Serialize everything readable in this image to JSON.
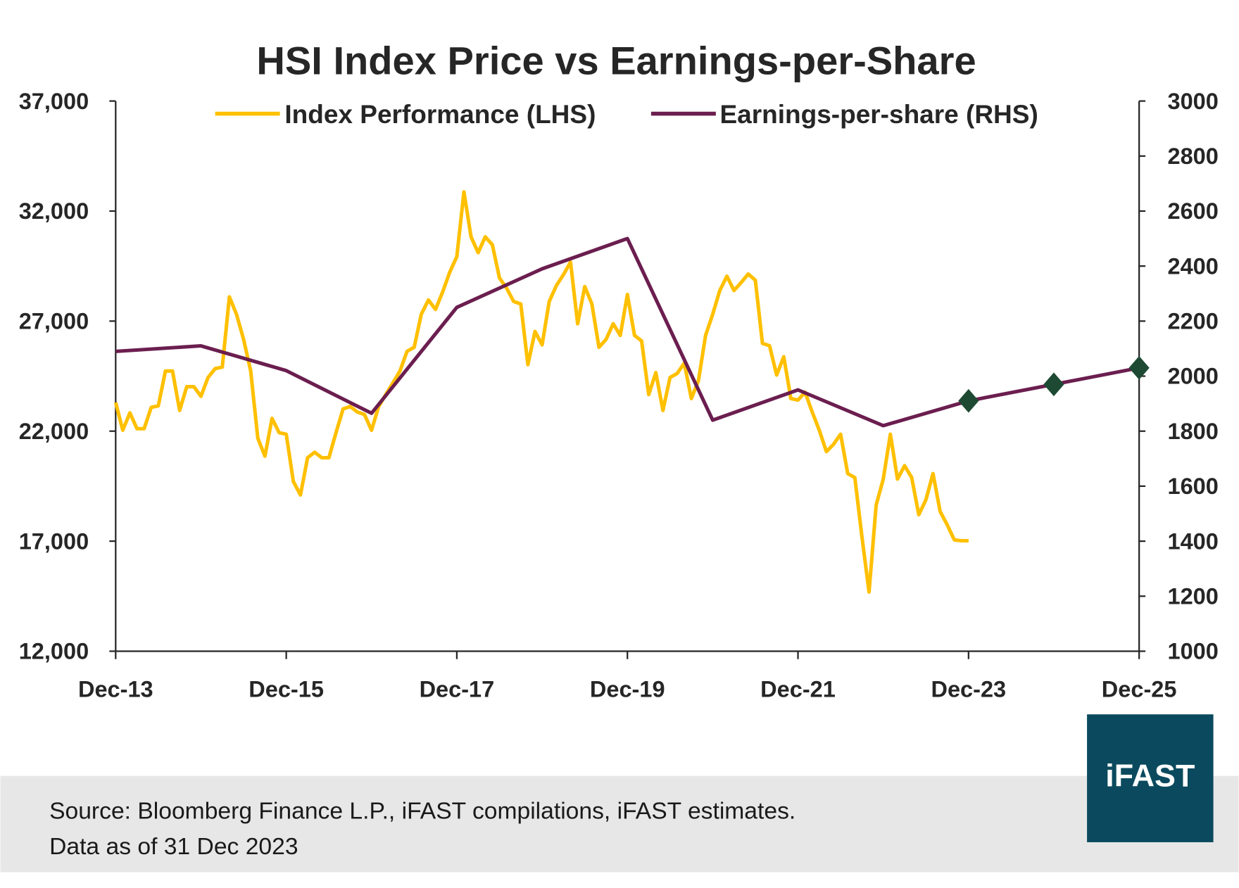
{
  "chart_data": {
    "type": "line",
    "title": "HSI Index Price vs Earnings-per-Share",
    "legend_position": "top",
    "grid": false,
    "x_tick_labels": [
      "Dec-13",
      "Dec-15",
      "Dec-17",
      "Dec-19",
      "Dec-21",
      "Dec-23",
      "Dec-25"
    ],
    "x_range": [
      "2013-12",
      "2025-12"
    ],
    "y_left": {
      "ticks": [
        "12,000",
        "17,000",
        "22,000",
        "27,000",
        "32,000",
        "37,000"
      ],
      "range": [
        12000,
        37000
      ]
    },
    "y_right": {
      "ticks": [
        "1000",
        "1200",
        "1400",
        "1600",
        "1800",
        "2000",
        "2200",
        "2400",
        "2600",
        "2800",
        "3000"
      ],
      "range": [
        1000,
        3000
      ]
    },
    "series": [
      {
        "name": "Index Performance (LHS)",
        "axis": "left",
        "color": "#FFC000",
        "x": [
          "2013-12",
          "2014-01",
          "2014-02",
          "2014-03",
          "2014-04",
          "2014-05",
          "2014-06",
          "2014-07",
          "2014-08",
          "2014-09",
          "2014-10",
          "2014-11",
          "2014-12",
          "2015-01",
          "2015-02",
          "2015-03",
          "2015-04",
          "2015-05",
          "2015-06",
          "2015-07",
          "2015-08",
          "2015-09",
          "2015-10",
          "2015-11",
          "2015-12",
          "2016-01",
          "2016-02",
          "2016-03",
          "2016-04",
          "2016-05",
          "2016-06",
          "2016-07",
          "2016-08",
          "2016-09",
          "2016-10",
          "2016-11",
          "2016-12",
          "2017-01",
          "2017-02",
          "2017-03",
          "2017-04",
          "2017-05",
          "2017-06",
          "2017-07",
          "2017-08",
          "2017-09",
          "2017-10",
          "2017-11",
          "2017-12",
          "2018-01",
          "2018-02",
          "2018-03",
          "2018-04",
          "2018-05",
          "2018-06",
          "2018-07",
          "2018-08",
          "2018-09",
          "2018-10",
          "2018-11",
          "2018-12",
          "2019-01",
          "2019-02",
          "2019-03",
          "2019-04",
          "2019-05",
          "2019-06",
          "2019-07",
          "2019-08",
          "2019-09",
          "2019-10",
          "2019-11",
          "2019-12",
          "2020-01",
          "2020-02",
          "2020-03",
          "2020-04",
          "2020-05",
          "2020-06",
          "2020-07",
          "2020-08",
          "2020-09",
          "2020-10",
          "2020-11",
          "2020-12",
          "2021-01",
          "2021-02",
          "2021-03",
          "2021-04",
          "2021-05",
          "2021-06",
          "2021-07",
          "2021-08",
          "2021-09",
          "2021-10",
          "2021-11",
          "2021-12",
          "2022-01",
          "2022-02",
          "2022-03",
          "2022-04",
          "2022-05",
          "2022-06",
          "2022-07",
          "2022-08",
          "2022-09",
          "2022-10",
          "2022-11",
          "2022-12",
          "2023-01",
          "2023-02",
          "2023-03",
          "2023-04",
          "2023-05",
          "2023-06",
          "2023-07",
          "2023-08",
          "2023-09",
          "2023-10",
          "2023-11",
          "2023-12"
        ],
        "values": [
          23300,
          22040,
          22830,
          22110,
          22110,
          23080,
          23150,
          24730,
          24730,
          22940,
          24020,
          24020,
          23580,
          24440,
          24840,
          24910,
          28100,
          27310,
          26170,
          24730,
          21680,
          20860,
          22580,
          21930,
          21860,
          19710,
          19100,
          20790,
          21040,
          20790,
          20790,
          21930,
          23010,
          23120,
          22870,
          22760,
          22040,
          23120,
          23660,
          24190,
          24730,
          25630,
          25810,
          27310,
          27960,
          27530,
          28320,
          29220,
          29930,
          32870,
          30830,
          30110,
          30830,
          30470,
          28960,
          28500,
          27890,
          27780,
          25020,
          26530,
          25920,
          27890,
          28610,
          29110,
          29680,
          26880,
          28570,
          27780,
          25810,
          26170,
          26880,
          26350,
          28210,
          26350,
          26100,
          23660,
          24660,
          22940,
          24440,
          24620,
          25090,
          23480,
          24300,
          26350,
          27310,
          28390,
          29040,
          28390,
          28750,
          29140,
          28860,
          25990,
          25880,
          24550,
          25380,
          23480,
          23410,
          23770,
          22870,
          22040,
          21070,
          21400,
          21860,
          20070,
          19890,
          17200,
          14690,
          18640,
          19820,
          21860,
          19820,
          20430,
          19890,
          18200,
          18880,
          20070,
          18350,
          17740,
          17060,
          17020,
          17020
        ]
      },
      {
        "name": "Earnings-per-share (RHS)",
        "axis": "right",
        "color": "#6B1E4F",
        "x": [
          "2013-12",
          "2014-12",
          "2015-12",
          "2016-12",
          "2017-12",
          "2018-12",
          "2019-12",
          "2020-12",
          "2021-12",
          "2022-12",
          "2023-12",
          "2024-12",
          "2025-12"
        ],
        "values": [
          2090,
          2110,
          2020,
          1865,
          2250,
          2390,
          2500,
          1840,
          1950,
          1820,
          1910,
          1970,
          2030
        ],
        "estimate_markers": [
          "2023-12",
          "2024-12",
          "2025-12"
        ],
        "marker_color": "#1E4A33"
      }
    ]
  },
  "footer": {
    "source": "Source: Bloomberg Finance L.P., iFAST compilations, iFAST estimates.",
    "date": "Data as of 31 Dec 2023",
    "band_color": "#E7E7E7"
  },
  "logo": {
    "text": "iFAST",
    "color": "#0B4A5E"
  }
}
